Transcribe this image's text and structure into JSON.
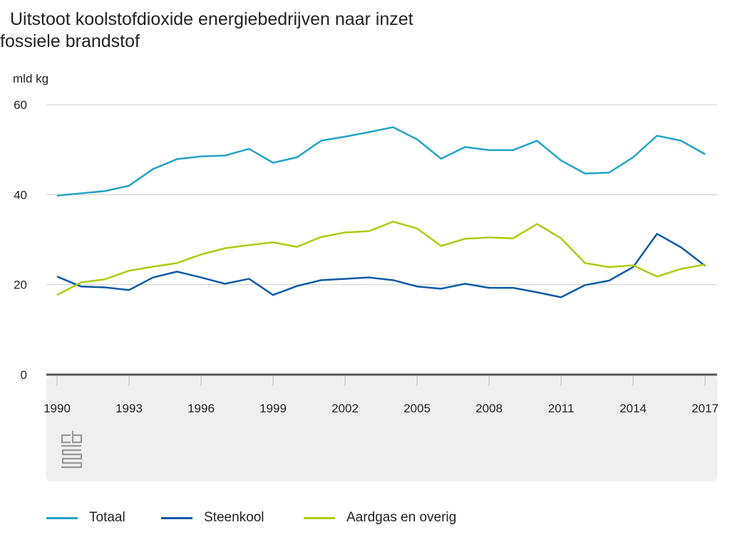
{
  "chart_data": {
    "type": "line",
    "title": "Uitstoot koolstofdioxide energiebedrijven naar inzet fossiele brandstof",
    "title_lines": [
      "Uitstoot koolstofdioxide energiebedrijven naar inzet",
      "fossiele brandstof"
    ],
    "ylabel": "mld kg",
    "ylim": [
      0,
      60
    ],
    "yticks": [
      0,
      20,
      40,
      60
    ],
    "xlim": [
      1990,
      2017
    ],
    "xticks": [
      1990,
      1993,
      1996,
      1999,
      2002,
      2005,
      2008,
      2011,
      2014,
      2017
    ],
    "grid": true,
    "legend_position": "bottom",
    "x": [
      1990,
      1991,
      1992,
      1993,
      1994,
      1995,
      1996,
      1997,
      1998,
      1999,
      2000,
      2001,
      2002,
      2003,
      2004,
      2005,
      2006,
      2007,
      2008,
      2009,
      2010,
      2011,
      2012,
      2013,
      2014,
      2015,
      2016,
      2017
    ],
    "series": [
      {
        "name": "Totaal",
        "color": "#22a3c6",
        "values": [
          39.8,
          40.3,
          40.8,
          42.0,
          45.7,
          47.9,
          48.5,
          48.7,
          50.2,
          47.1,
          48.3,
          52.0,
          52.9,
          53.9,
          55.0,
          52.3,
          48.0,
          50.6,
          49.9,
          49.9,
          52.0,
          47.6,
          44.7,
          44.9,
          48.3,
          53.1,
          52.0,
          49.0
        ]
      },
      {
        "name": "Steenkool",
        "color": "#0b5aa6",
        "values": [
          21.8,
          19.6,
          19.4,
          18.8,
          21.6,
          22.9,
          21.6,
          20.2,
          21.3,
          17.7,
          19.7,
          21.0,
          21.3,
          21.6,
          21.0,
          19.6,
          19.1,
          20.2,
          19.3,
          19.3,
          18.3,
          17.2,
          19.9,
          20.9,
          23.9,
          31.3,
          28.3,
          24.2
        ]
      },
      {
        "name": "Aardgas en overig",
        "color": "#afca0b",
        "values": [
          17.7,
          20.5,
          21.2,
          23.1,
          24.0,
          24.8,
          26.7,
          28.1,
          28.8,
          29.4,
          28.4,
          30.6,
          31.6,
          31.9,
          34.0,
          32.5,
          28.6,
          30.2,
          30.5,
          30.3,
          33.5,
          30.3,
          24.8,
          23.9,
          24.3,
          21.8,
          23.5,
          24.5
        ]
      }
    ]
  },
  "logo": "cbs"
}
